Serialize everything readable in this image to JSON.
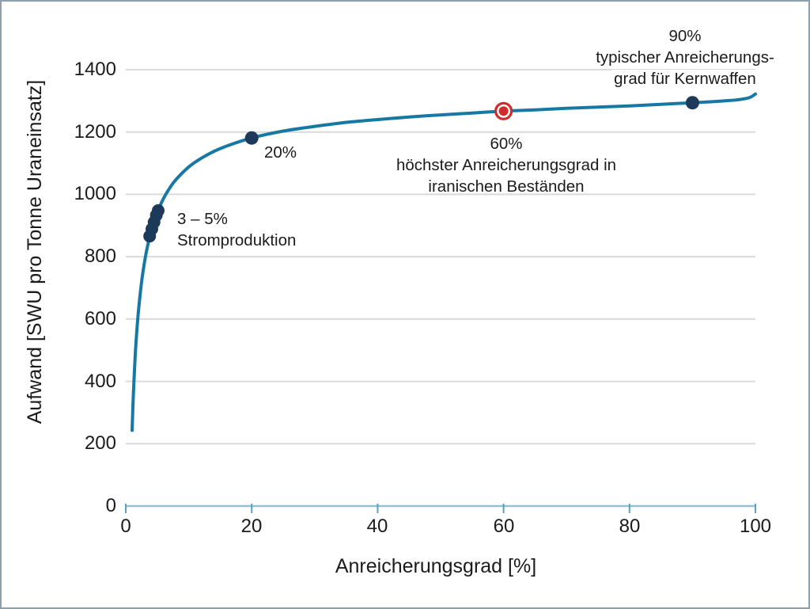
{
  "page": {
    "background": "#FFFFFF",
    "border_color": "#8C9FAD"
  },
  "chart_data": {
    "type": "line",
    "title": "",
    "xlabel": "Anreicherungsgrad [%]",
    "ylabel": "Aufwand [SWU pro Tonne Uraneinsatz]",
    "xlim": [
      0,
      100
    ],
    "ylim": [
      0,
      1400
    ],
    "x_ticks": [
      0,
      20,
      40,
      60,
      80,
      100
    ],
    "y_ticks": [
      0,
      200,
      400,
      600,
      800,
      1000,
      1200,
      1400
    ],
    "grid": "horizontal-only",
    "legend": "none",
    "series": [
      {
        "name": "SWU pro Tonne Uraneinsatz",
        "x": [
          1,
          1.2,
          1.5,
          1.7,
          2,
          2.5,
          3,
          3.5,
          4,
          5,
          6,
          7,
          8,
          10,
          12,
          15,
          20,
          25,
          30,
          35,
          40,
          45,
          50,
          55,
          60,
          65,
          70,
          75,
          80,
          85,
          90,
          93,
          95,
          97,
          99,
          100
        ],
        "y": [
          243,
          357,
          482,
          546,
          623,
          717,
          786,
          838,
          880,
          942,
          987,
          1021,
          1048,
          1088,
          1116,
          1147,
          1181,
          1203,
          1218,
          1231,
          1240,
          1248,
          1255,
          1261,
          1267,
          1271,
          1276,
          1280,
          1284,
          1289,
          1294,
          1297,
          1300,
          1303,
          1310,
          1322
        ]
      }
    ],
    "markers": [
      {
        "id": "m3to5",
        "style": "cluster",
        "points": [
          [
            3.8,
            866
          ],
          [
            4.15,
            889
          ],
          [
            4.5,
            911
          ],
          [
            4.85,
            933
          ],
          [
            5.15,
            948
          ]
        ],
        "label_lines": [
          "3 – 5%",
          "Stromproduktion"
        ]
      },
      {
        "id": "m20",
        "style": "dot",
        "x": 20,
        "y": 1181,
        "label_lines": [
          "20%"
        ]
      },
      {
        "id": "m60",
        "style": "target",
        "x": 60,
        "y": 1267,
        "label_lines": [
          "60%",
          "höchster Anreicherungsgrad in",
          "iranischen Beständen"
        ]
      },
      {
        "id": "m90",
        "style": "dot",
        "x": 90,
        "y": 1294,
        "label_lines": [
          "90%",
          "typischer Anreicherungs-",
          "grad für Kernwaffen"
        ]
      }
    ],
    "colors": {
      "curve": "#1779A3",
      "point": "#1E3A5B",
      "highlight": "#D02C2C",
      "axis_line": "#8CC3DC",
      "tick": "#56A3C9",
      "grid": "#DADADA",
      "text": "#1B1B1B"
    }
  }
}
